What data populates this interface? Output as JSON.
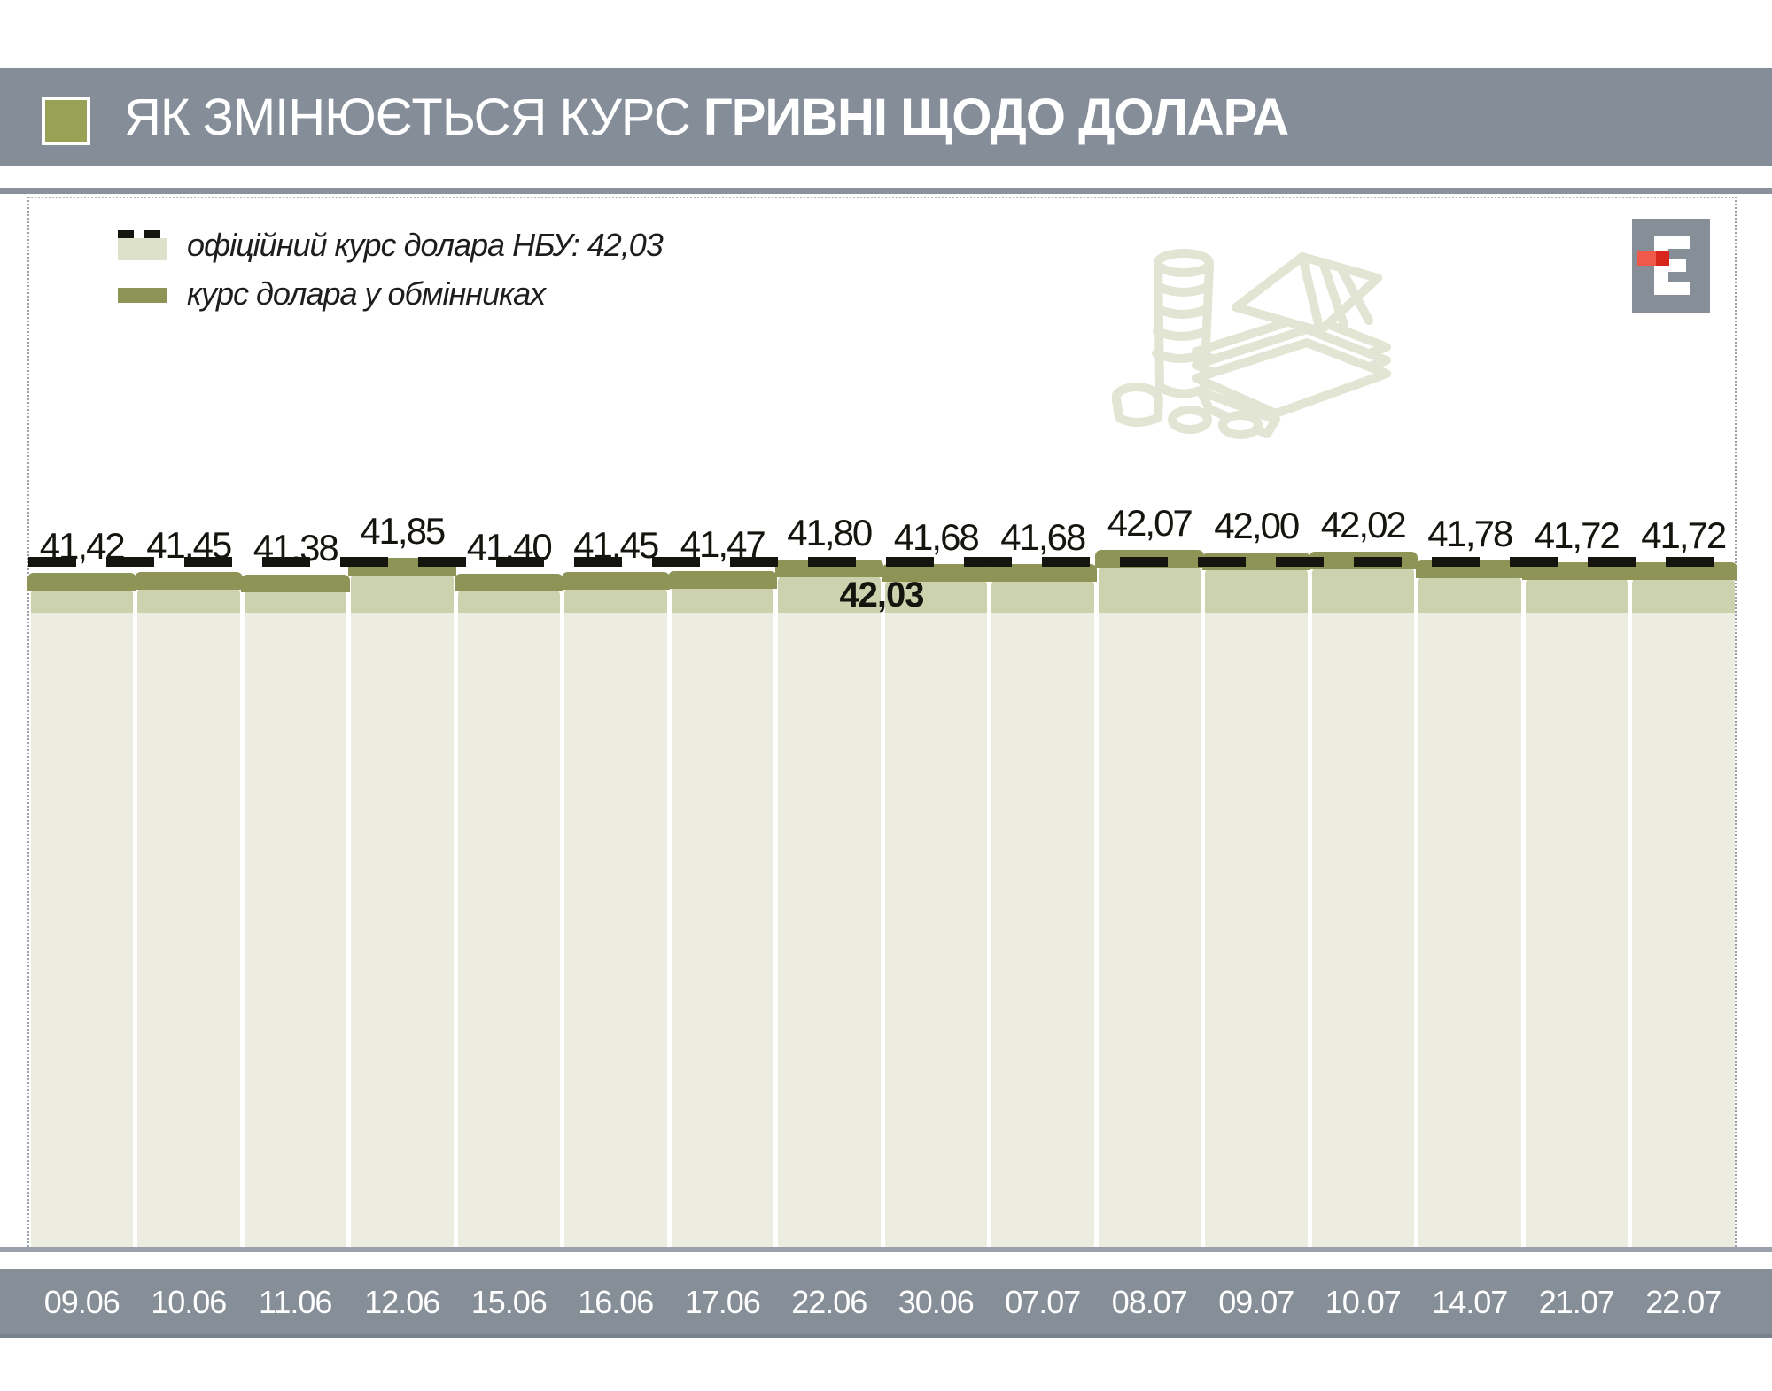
{
  "header": {
    "title_regular": "ЯК ЗМІНЮЄТЬСЯ КУРС ",
    "title_bold": "ГРИВНІ ЩОДО ДОЛАРА"
  },
  "legend": {
    "official": "офіційний курс долара НБУ: 42,03",
    "exchange": "курс долара у обмінниках"
  },
  "chart_data": {
    "type": "bar",
    "title": "ЯК ЗМІНЮЄТЬСЯ КУРС ГРИВНІ ЩОДО ДОЛАРА",
    "categories": [
      "09.06",
      "10.06",
      "11.06",
      "12.06",
      "15.06",
      "16.06",
      "17.06",
      "22.06",
      "30.06",
      "07.07",
      "08.07",
      "09.07",
      "10.07",
      "14.07",
      "21.07",
      "22.07"
    ],
    "series": [
      {
        "name": "курс долара у обмінниках",
        "type": "bar-with-step-line",
        "values": [
          41.42,
          41.45,
          41.38,
          41.85,
          41.4,
          41.45,
          41.47,
          41.8,
          41.68,
          41.68,
          42.07,
          42.0,
          42.02,
          41.78,
          41.72,
          41.72
        ],
        "labels": [
          "41,42",
          "41,45",
          "41,38",
          "41,85",
          "41,40",
          "41,45",
          "41,47",
          "41,80",
          "41,68",
          "41,68",
          "42,07",
          "42,00",
          "42,02",
          "41,78",
          "41,72",
          "41,72"
        ]
      },
      {
        "name": "офіційний курс долара НБУ",
        "type": "line",
        "dashed": true,
        "value": 42.03,
        "label": "42,03"
      }
    ],
    "ylim": [
      0,
      42.5
    ],
    "grid": false,
    "legend_position": "top-left"
  },
  "colors": {
    "header_bg": "#858E98",
    "accent_olive": "#99A157",
    "line_olive": "#8E9455",
    "bar_top_band": "#CDD2AE",
    "bar_body": "#ECEDE0",
    "legend_light_swatch": "#DDE1CA",
    "dash_black": "#15150F",
    "date_band": "#868E98",
    "date_text": "#FFFFFF",
    "logo_gray": "#868E98",
    "logo_red_light": "#F0594A",
    "logo_red_dark": "#D8261C",
    "illustration_olive": "#E2E5D3"
  }
}
